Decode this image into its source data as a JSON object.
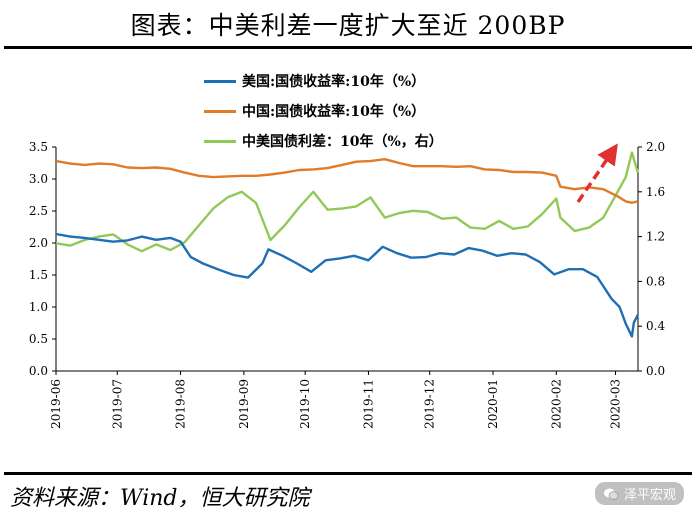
{
  "header": {
    "title": "图表：中美利差一度扩大至近 200BP"
  },
  "footer": {
    "source": "资料来源：Wind，恒大研究院",
    "watermark": "泽平宏观"
  },
  "chart_data": {
    "type": "line",
    "title": "图表：中美利差一度扩大至近 200BP",
    "x_ticks": [
      "2019-06",
      "2019-07",
      "2019-08",
      "2019-09",
      "2019-10",
      "2019-11",
      "2019-12",
      "2020-01",
      "2020-02",
      "2020-03"
    ],
    "x_range": [
      "2019-06-01",
      "2020-03-12"
    ],
    "y_left": {
      "ticks": [
        "0.0",
        "0.5",
        "1.0",
        "1.5",
        "2.0",
        "2.5",
        "3.0",
        "3.5"
      ],
      "range": [
        0,
        3.5
      ]
    },
    "y_right": {
      "ticks": [
        "0.0",
        "0.4",
        "0.8",
        "1.2",
        "1.6",
        "2.0"
      ],
      "range": [
        0,
        2.0
      ],
      "label": "右"
    },
    "legend_position": "top-center",
    "grid": false,
    "series": [
      {
        "name": "美国:国债收益率:10年（%）",
        "axis": "left",
        "color": "#1f6fb4",
        "points": [
          [
            "2019-06-01",
            2.14
          ],
          [
            "2019-06-08",
            2.1
          ],
          [
            "2019-06-15",
            2.08
          ],
          [
            "2019-06-22",
            2.05
          ],
          [
            "2019-06-29",
            2.02
          ],
          [
            "2019-07-06",
            2.04
          ],
          [
            "2019-07-13",
            2.1
          ],
          [
            "2019-07-20",
            2.05
          ],
          [
            "2019-07-27",
            2.08
          ],
          [
            "2019-08-01",
            2.02
          ],
          [
            "2019-08-06",
            1.78
          ],
          [
            "2019-08-12",
            1.68
          ],
          [
            "2019-08-20",
            1.58
          ],
          [
            "2019-08-27",
            1.5
          ],
          [
            "2019-09-03",
            1.46
          ],
          [
            "2019-09-10",
            1.68
          ],
          [
            "2019-09-13",
            1.9
          ],
          [
            "2019-09-20",
            1.8
          ],
          [
            "2019-09-27",
            1.68
          ],
          [
            "2019-10-04",
            1.55
          ],
          [
            "2019-10-11",
            1.73
          ],
          [
            "2019-10-18",
            1.76
          ],
          [
            "2019-10-25",
            1.8
          ],
          [
            "2019-11-01",
            1.73
          ],
          [
            "2019-11-08",
            1.94
          ],
          [
            "2019-11-15",
            1.84
          ],
          [
            "2019-11-22",
            1.77
          ],
          [
            "2019-11-29",
            1.78
          ],
          [
            "2019-12-06",
            1.84
          ],
          [
            "2019-12-13",
            1.82
          ],
          [
            "2019-12-20",
            1.92
          ],
          [
            "2019-12-27",
            1.88
          ],
          [
            "2020-01-03",
            1.8
          ],
          [
            "2020-01-10",
            1.84
          ],
          [
            "2020-01-17",
            1.82
          ],
          [
            "2020-01-24",
            1.7
          ],
          [
            "2020-01-31",
            1.51
          ],
          [
            "2020-02-07",
            1.59
          ],
          [
            "2020-02-14",
            1.59
          ],
          [
            "2020-02-21",
            1.47
          ],
          [
            "2020-02-28",
            1.13
          ],
          [
            "2020-03-03",
            1.0
          ],
          [
            "2020-03-06",
            0.74
          ],
          [
            "2020-03-09",
            0.54
          ],
          [
            "2020-03-10",
            0.76
          ],
          [
            "2020-03-12",
            0.88
          ]
        ]
      },
      {
        "name": "中国:国债收益率:10年（%）",
        "axis": "left",
        "color": "#e07b28",
        "points": [
          [
            "2019-06-01",
            3.28
          ],
          [
            "2019-06-08",
            3.24
          ],
          [
            "2019-06-15",
            3.22
          ],
          [
            "2019-06-22",
            3.24
          ],
          [
            "2019-06-29",
            3.23
          ],
          [
            "2019-07-06",
            3.18
          ],
          [
            "2019-07-13",
            3.17
          ],
          [
            "2019-07-20",
            3.18
          ],
          [
            "2019-07-27",
            3.16
          ],
          [
            "2019-08-03",
            3.1
          ],
          [
            "2019-08-10",
            3.05
          ],
          [
            "2019-08-17",
            3.03
          ],
          [
            "2019-08-24",
            3.04
          ],
          [
            "2019-08-31",
            3.05
          ],
          [
            "2019-09-07",
            3.05
          ],
          [
            "2019-09-14",
            3.07
          ],
          [
            "2019-09-21",
            3.1
          ],
          [
            "2019-09-28",
            3.14
          ],
          [
            "2019-10-05",
            3.15
          ],
          [
            "2019-10-12",
            3.17
          ],
          [
            "2019-10-19",
            3.22
          ],
          [
            "2019-10-26",
            3.27
          ],
          [
            "2019-11-02",
            3.28
          ],
          [
            "2019-11-09",
            3.31
          ],
          [
            "2019-11-16",
            3.25
          ],
          [
            "2019-11-23",
            3.2
          ],
          [
            "2019-11-30",
            3.2
          ],
          [
            "2019-12-07",
            3.2
          ],
          [
            "2019-12-14",
            3.19
          ],
          [
            "2019-12-21",
            3.2
          ],
          [
            "2019-12-28",
            3.15
          ],
          [
            "2020-01-04",
            3.14
          ],
          [
            "2020-01-11",
            3.11
          ],
          [
            "2020-01-18",
            3.11
          ],
          [
            "2020-01-25",
            3.1
          ],
          [
            "2020-02-01",
            3.05
          ],
          [
            "2020-02-03",
            2.88
          ],
          [
            "2020-02-10",
            2.84
          ],
          [
            "2020-02-17",
            2.87
          ],
          [
            "2020-02-24",
            2.84
          ],
          [
            "2020-03-02",
            2.73
          ],
          [
            "2020-03-06",
            2.65
          ],
          [
            "2020-03-09",
            2.63
          ],
          [
            "2020-03-12",
            2.65
          ]
        ]
      },
      {
        "name": "中美国债利差：10年（%，右）",
        "axis": "right",
        "color": "#90c957",
        "points": [
          [
            "2019-06-01",
            1.14
          ],
          [
            "2019-06-08",
            1.12
          ],
          [
            "2019-06-15",
            1.17
          ],
          [
            "2019-06-22",
            1.2
          ],
          [
            "2019-06-29",
            1.22
          ],
          [
            "2019-07-06",
            1.13
          ],
          [
            "2019-07-13",
            1.07
          ],
          [
            "2019-07-20",
            1.13
          ],
          [
            "2019-07-27",
            1.08
          ],
          [
            "2019-08-03",
            1.15
          ],
          [
            "2019-08-10",
            1.3
          ],
          [
            "2019-08-17",
            1.45
          ],
          [
            "2019-08-24",
            1.55
          ],
          [
            "2019-08-31",
            1.6
          ],
          [
            "2019-09-07",
            1.5
          ],
          [
            "2019-09-14",
            1.17
          ],
          [
            "2019-09-21",
            1.3
          ],
          [
            "2019-09-28",
            1.46
          ],
          [
            "2019-10-05",
            1.6
          ],
          [
            "2019-10-12",
            1.44
          ],
          [
            "2019-10-19",
            1.45
          ],
          [
            "2019-10-26",
            1.47
          ],
          [
            "2019-11-02",
            1.55
          ],
          [
            "2019-11-09",
            1.37
          ],
          [
            "2019-11-16",
            1.41
          ],
          [
            "2019-11-23",
            1.43
          ],
          [
            "2019-11-30",
            1.42
          ],
          [
            "2019-12-07",
            1.36
          ],
          [
            "2019-12-14",
            1.37
          ],
          [
            "2019-12-21",
            1.28
          ],
          [
            "2019-12-28",
            1.27
          ],
          [
            "2020-01-04",
            1.34
          ],
          [
            "2020-01-11",
            1.27
          ],
          [
            "2020-01-18",
            1.29
          ],
          [
            "2020-01-25",
            1.4
          ],
          [
            "2020-02-01",
            1.54
          ],
          [
            "2020-02-03",
            1.37
          ],
          [
            "2020-02-10",
            1.25
          ],
          [
            "2020-02-17",
            1.28
          ],
          [
            "2020-02-24",
            1.37
          ],
          [
            "2020-03-02",
            1.6
          ],
          [
            "2020-03-06",
            1.73
          ],
          [
            "2020-03-09",
            1.95
          ],
          [
            "2020-03-12",
            1.77
          ]
        ]
      }
    ]
  }
}
